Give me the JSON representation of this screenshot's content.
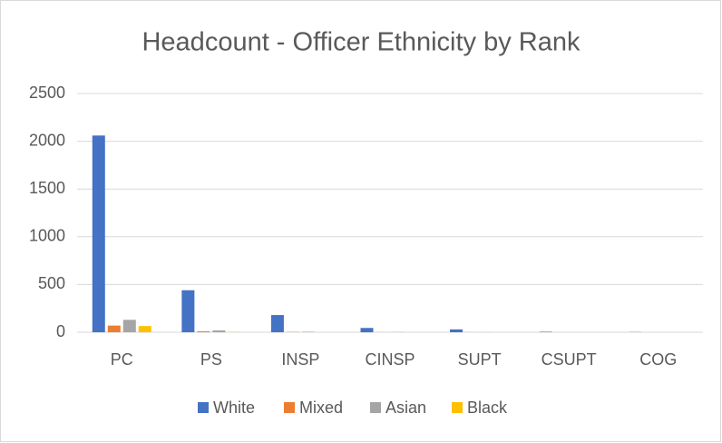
{
  "chart_data": {
    "type": "bar",
    "title": "Headcount - Officer Ethnicity by Rank",
    "categories": [
      "PC",
      "PS",
      "INSP",
      "CINSP",
      "SUPT",
      "CSUPT",
      "COG"
    ],
    "series": [
      {
        "name": "White",
        "color": "#4472c4",
        "values": [
          2060,
          440,
          180,
          45,
          30,
          5,
          2
        ]
      },
      {
        "name": "Mixed",
        "color": "#ed7d31",
        "values": [
          70,
          10,
          3,
          1,
          1,
          0,
          0
        ]
      },
      {
        "name": "Asian",
        "color": "#a5a5a5",
        "values": [
          130,
          20,
          5,
          2,
          1,
          0,
          0
        ]
      },
      {
        "name": "Black",
        "color": "#ffc000",
        "values": [
          65,
          3,
          1,
          0,
          0,
          0,
          0
        ]
      }
    ],
    "ylim": [
      0,
      2500
    ],
    "yticks": [
      0,
      500,
      1000,
      1500,
      2000,
      2500
    ],
    "grid": true,
    "legend": "bottom"
  }
}
